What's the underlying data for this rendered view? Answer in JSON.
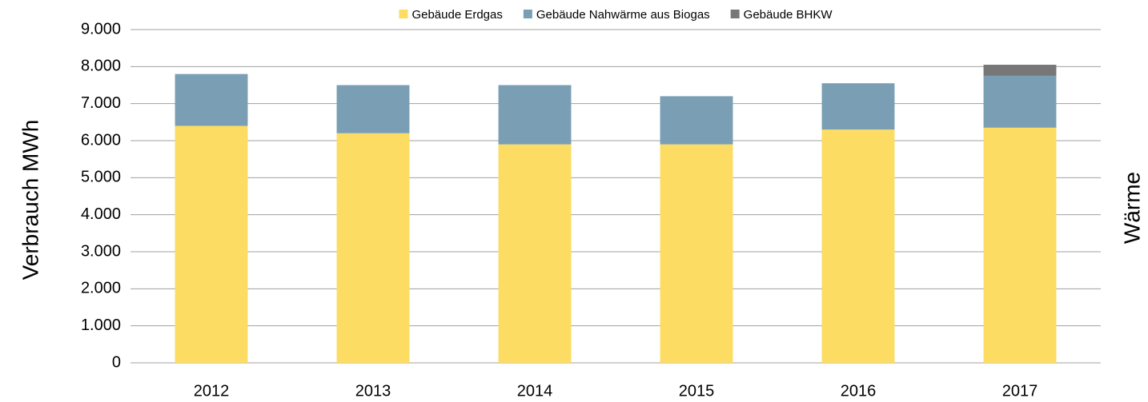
{
  "chart_data": {
    "type": "stacked_bar",
    "y_label": "Verbrauch MWh",
    "side_label": "Wärme",
    "categories": [
      "2012",
      "2013",
      "2014",
      "2015",
      "2016",
      "2017"
    ],
    "series": [
      {
        "name": "Gebäude Erdgas",
        "color": "#fcdc62",
        "values": [
          6400,
          6200,
          5900,
          5900,
          6300,
          6350
        ]
      },
      {
        "name": "Gebäude Nahwärme aus Biogas",
        "color": "#7a9fb5",
        "values": [
          1400,
          1300,
          1600,
          1300,
          1250,
          1400
        ]
      },
      {
        "name": "Gebäude BHKW",
        "color": "#777777",
        "values": [
          0,
          0,
          0,
          0,
          0,
          300
        ]
      }
    ],
    "ylim": [
      0,
      9000
    ],
    "yticks": [
      0,
      {
        "value": 1000,
        "label": "1.000"
      },
      {
        "value": 2000,
        "label": "2.000"
      },
      {
        "value": 3000,
        "label": "3.000"
      },
      {
        "value": 4000,
        "label": "4.000"
      },
      {
        "value": 5000,
        "label": "5.000"
      },
      {
        "value": 6000,
        "label": "6.000"
      },
      {
        "value": 7000,
        "label": "7.000"
      },
      {
        "value": 8000,
        "label": "8.000"
      },
      {
        "value": 9000,
        "label": "9.000"
      }
    ],
    "grid": true,
    "legend": "top"
  }
}
